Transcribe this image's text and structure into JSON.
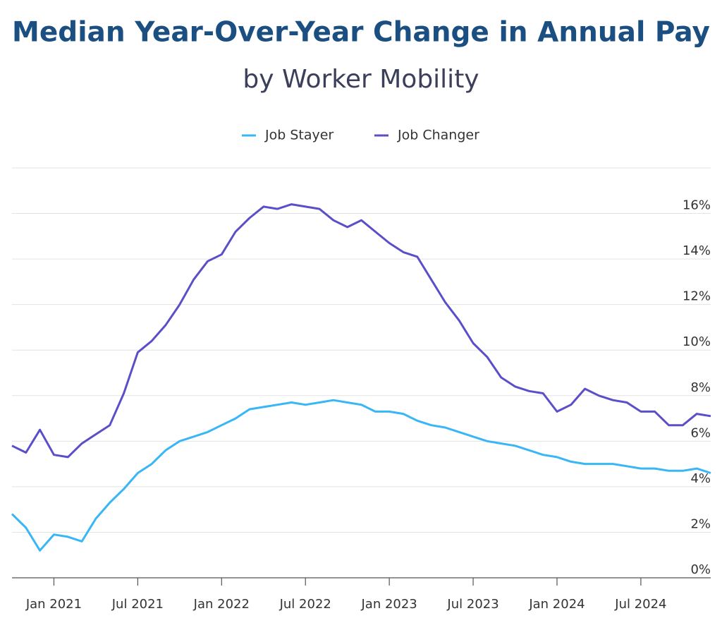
{
  "chart_data": {
    "type": "line",
    "title": "Median Year-Over-Year Change in Annual Pay",
    "subtitle": "by Worker Mobility",
    "x": [
      "2020-10",
      "2020-11",
      "2020-12",
      "2021-01",
      "2021-02",
      "2021-03",
      "2021-04",
      "2021-05",
      "2021-06",
      "2021-07",
      "2021-08",
      "2021-09",
      "2021-10",
      "2021-11",
      "2021-12",
      "2022-01",
      "2022-02",
      "2022-03",
      "2022-04",
      "2022-05",
      "2022-06",
      "2022-07",
      "2022-08",
      "2022-09",
      "2022-10",
      "2022-11",
      "2022-12",
      "2023-01",
      "2023-02",
      "2023-03",
      "2023-04",
      "2023-05",
      "2023-06",
      "2023-07",
      "2023-08",
      "2023-09",
      "2023-10",
      "2023-11",
      "2023-12",
      "2024-01",
      "2024-02",
      "2024-03",
      "2024-04",
      "2024-05",
      "2024-06",
      "2024-07",
      "2024-08",
      "2024-09",
      "2024-10",
      "2024-11",
      "2024-12"
    ],
    "series": [
      {
        "name": "Job Stayer",
        "color": "#38b6f5",
        "values": [
          2.8,
          2.2,
          1.2,
          1.9,
          1.8,
          1.6,
          2.6,
          3.3,
          3.9,
          4.6,
          5.0,
          5.6,
          6.0,
          6.2,
          6.4,
          6.7,
          7.0,
          7.4,
          7.5,
          7.6,
          7.7,
          7.6,
          7.7,
          7.8,
          7.7,
          7.6,
          7.3,
          7.3,
          7.2,
          6.9,
          6.7,
          6.6,
          6.4,
          6.2,
          6.0,
          5.9,
          5.8,
          5.6,
          5.4,
          5.3,
          5.1,
          5.0,
          5.0,
          5.0,
          4.9,
          4.8,
          4.8,
          4.7,
          4.7,
          4.8,
          4.6
        ]
      },
      {
        "name": "Job Changer",
        "color": "#5b4fc9",
        "values": [
          5.8,
          5.5,
          6.5,
          5.4,
          5.3,
          5.9,
          6.3,
          6.7,
          8.1,
          9.9,
          10.4,
          11.1,
          12.0,
          13.1,
          13.9,
          14.2,
          15.2,
          15.8,
          16.3,
          16.2,
          16.4,
          16.3,
          16.2,
          15.7,
          15.4,
          15.7,
          15.2,
          14.7,
          14.3,
          14.1,
          13.1,
          12.1,
          11.3,
          10.3,
          9.7,
          8.8,
          8.4,
          8.2,
          8.1,
          7.3,
          7.6,
          8.3,
          8.0,
          7.8,
          7.7,
          7.3,
          7.3,
          6.7,
          6.7,
          7.2,
          7.1
        ]
      }
    ],
    "xlim": [
      "2020-10",
      "2024-12"
    ],
    "xticks": [
      {
        "value": "2021-01",
        "label": "Jan 2021"
      },
      {
        "value": "2021-07",
        "label": "Jul 2021"
      },
      {
        "value": "2022-01",
        "label": "Jan 2022"
      },
      {
        "value": "2022-07",
        "label": "Jul 2022"
      },
      {
        "value": "2023-01",
        "label": "Jan 2023"
      },
      {
        "value": "2023-07",
        "label": "Jul 2023"
      },
      {
        "value": "2024-01",
        "label": "Jan 2024"
      },
      {
        "value": "2024-07",
        "label": "Jul 2024"
      }
    ],
    "ylim": [
      0,
      18
    ],
    "yticks": [
      {
        "value": 0,
        "label": "0%"
      },
      {
        "value": 2,
        "label": "2%"
      },
      {
        "value": 4,
        "label": "4%"
      },
      {
        "value": 6,
        "label": "6%"
      },
      {
        "value": 8,
        "label": "8%"
      },
      {
        "value": 10,
        "label": "10%"
      },
      {
        "value": 12,
        "label": "12%"
      },
      {
        "value": 14,
        "label": "14%"
      },
      {
        "value": 16,
        "label": "16%"
      }
    ],
    "grid": true,
    "legend": "top"
  }
}
